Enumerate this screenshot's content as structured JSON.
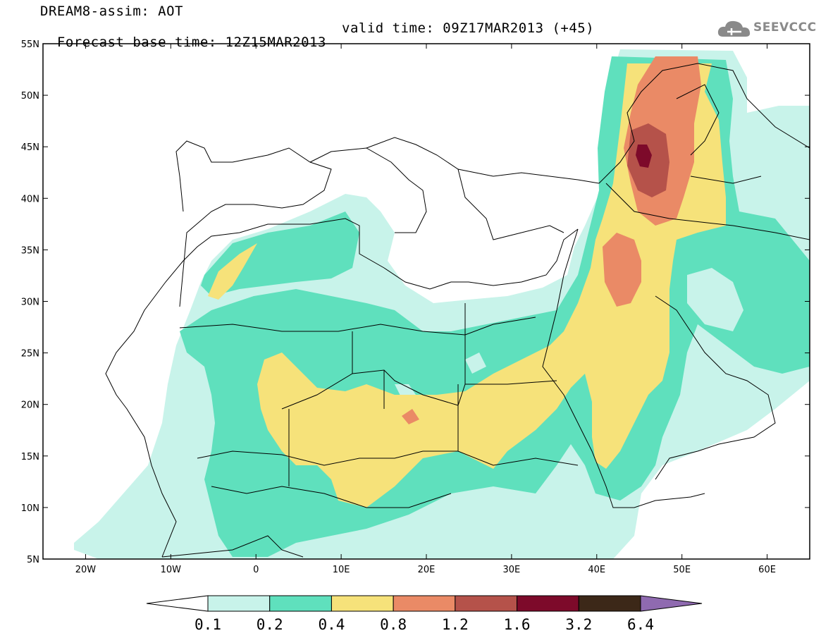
{
  "title": {
    "line1": "DREAM8-assim: AOT",
    "line2_base": "Forecast base time: 12Z15MAR2013",
    "line2_valid": "valid time: 09Z17MAR2013 (+45)"
  },
  "logo": {
    "text": "SEEVCCC",
    "icon": "cloud-icon"
  },
  "map": {
    "lat_labels": [
      "55N",
      "50N",
      "45N",
      "40N",
      "35N",
      "30N",
      "25N",
      "20N",
      "15N",
      "10N",
      "5N"
    ],
    "lon_labels": [
      "20W",
      "10W",
      "0",
      "10E",
      "20E",
      "30E",
      "40E",
      "50E",
      "60E"
    ],
    "extent": {
      "lon": [
        -25,
        65
      ],
      "lat": [
        5,
        55
      ]
    }
  },
  "colorbar": {
    "labels": [
      "0.1",
      "0.2",
      "0.4",
      "0.8",
      "1.2",
      "1.6",
      "3.2",
      "6.4"
    ],
    "colors": [
      "#ffffff",
      "#c8f3ea",
      "#5fe0bd",
      "#f6e27a",
      "#ea8a66",
      "#b5524a",
      "#7d0a2a",
      "#3c2818",
      "#8f6ab0"
    ]
  }
}
